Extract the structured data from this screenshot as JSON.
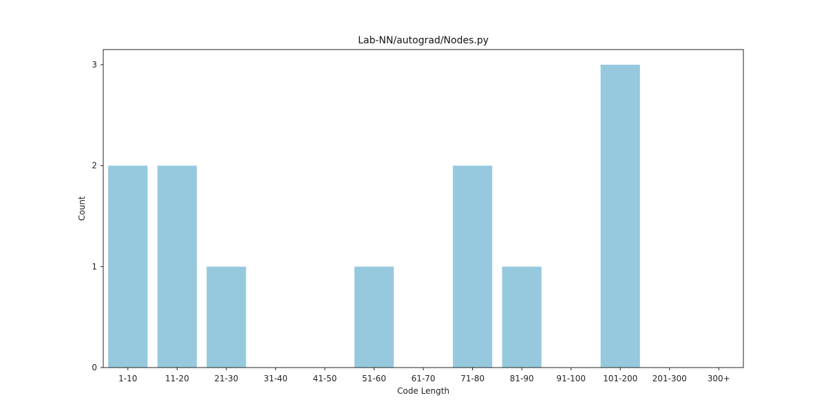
{
  "chart_data": {
    "type": "bar",
    "title": "Lab-NN/autograd/Nodes.py",
    "xlabel": "Code Length",
    "ylabel": "Count",
    "categories": [
      "1-10",
      "11-20",
      "21-30",
      "31-40",
      "41-50",
      "51-60",
      "61-70",
      "71-80",
      "81-90",
      "91-100",
      "101-200",
      "201-300",
      "300+"
    ],
    "values": [
      2,
      2,
      1,
      0,
      0,
      1,
      0,
      2,
      1,
      0,
      3,
      0,
      0
    ],
    "yticks": [
      0,
      1,
      2,
      3
    ],
    "ylim": [
      0,
      3.15
    ],
    "grid": false,
    "bar_color": "#96c9de"
  }
}
